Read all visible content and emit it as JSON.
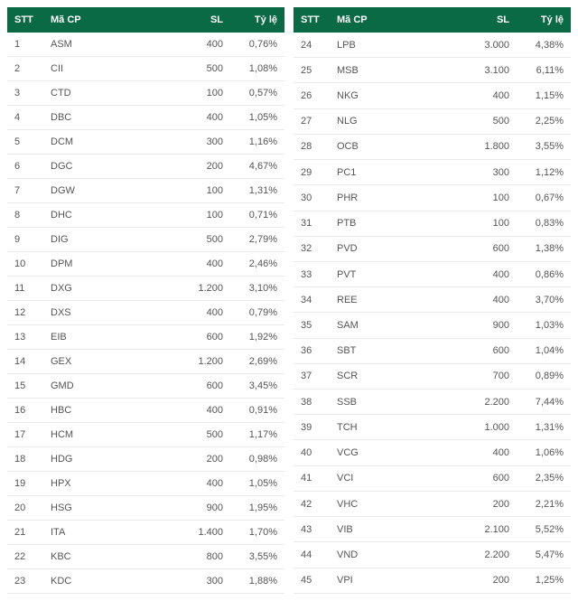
{
  "table": {
    "columns": {
      "stt": "STT",
      "code": "Mã CP",
      "sl": "SL",
      "ratio": "Tỷ lệ"
    },
    "header_bg": "#0b6a46",
    "header_color": "#ffffff",
    "row_border_color": "#eaeaea",
    "text_color": "#444444",
    "font_size_header": 11,
    "font_size_body": 11,
    "left": {
      "rows": [
        {
          "stt": "1",
          "code": "ASM",
          "sl": "400",
          "ratio": "0,76%"
        },
        {
          "stt": "2",
          "code": "CII",
          "sl": "500",
          "ratio": "1,08%"
        },
        {
          "stt": "3",
          "code": "CTD",
          "sl": "100",
          "ratio": "0,57%"
        },
        {
          "stt": "4",
          "code": "DBC",
          "sl": "400",
          "ratio": "1,05%"
        },
        {
          "stt": "5",
          "code": "DCM",
          "sl": "300",
          "ratio": "1,16%"
        },
        {
          "stt": "6",
          "code": "DGC",
          "sl": "200",
          "ratio": "4,67%"
        },
        {
          "stt": "7",
          "code": "DGW",
          "sl": "100",
          "ratio": "1,31%"
        },
        {
          "stt": "8",
          "code": "DHC",
          "sl": "100",
          "ratio": "0,71%"
        },
        {
          "stt": "9",
          "code": "DIG",
          "sl": "500",
          "ratio": "2,79%"
        },
        {
          "stt": "10",
          "code": "DPM",
          "sl": "400",
          "ratio": "2,46%"
        },
        {
          "stt": "11",
          "code": "DXG",
          "sl": "1.200",
          "ratio": "3,10%"
        },
        {
          "stt": "12",
          "code": "DXS",
          "sl": "400",
          "ratio": "0,79%"
        },
        {
          "stt": "13",
          "code": "EIB",
          "sl": "600",
          "ratio": "1,92%"
        },
        {
          "stt": "14",
          "code": "GEX",
          "sl": "1.200",
          "ratio": "2,69%"
        },
        {
          "stt": "15",
          "code": "GMD",
          "sl": "600",
          "ratio": "3,45%"
        },
        {
          "stt": "16",
          "code": "HBC",
          "sl": "400",
          "ratio": "0,91%"
        },
        {
          "stt": "17",
          "code": "HCM",
          "sl": "500",
          "ratio": "1,17%"
        },
        {
          "stt": "18",
          "code": "HDG",
          "sl": "200",
          "ratio": "0,98%"
        },
        {
          "stt": "19",
          "code": "HPX",
          "sl": "400",
          "ratio": "1,05%"
        },
        {
          "stt": "20",
          "code": "HSG",
          "sl": "900",
          "ratio": "1,95%"
        },
        {
          "stt": "21",
          "code": "ITA",
          "sl": "1.400",
          "ratio": "1,70%"
        },
        {
          "stt": "22",
          "code": "KBC",
          "sl": "800",
          "ratio": "3,55%"
        },
        {
          "stt": "23",
          "code": "KDC",
          "sl": "300",
          "ratio": "1,88%"
        }
      ]
    },
    "right": {
      "rows": [
        {
          "stt": "24",
          "code": "LPB",
          "sl": "3.000",
          "ratio": "4,38%"
        },
        {
          "stt": "25",
          "code": "MSB",
          "sl": "3.100",
          "ratio": "6,11%"
        },
        {
          "stt": "26",
          "code": "NKG",
          "sl": "400",
          "ratio": "1,15%"
        },
        {
          "stt": "27",
          "code": "NLG",
          "sl": "500",
          "ratio": "2,25%"
        },
        {
          "stt": "28",
          "code": "OCB",
          "sl": "1.800",
          "ratio": "3,55%"
        },
        {
          "stt": "29",
          "code": "PC1",
          "sl": "300",
          "ratio": "1,12%"
        },
        {
          "stt": "30",
          "code": "PHR",
          "sl": "100",
          "ratio": "0,67%"
        },
        {
          "stt": "31",
          "code": "PTB",
          "sl": "100",
          "ratio": "0,83%"
        },
        {
          "stt": "32",
          "code": "PVD",
          "sl": "600",
          "ratio": "1,38%"
        },
        {
          "stt": "33",
          "code": "PVT",
          "sl": "400",
          "ratio": "0,86%"
        },
        {
          "stt": "34",
          "code": "REE",
          "sl": "400",
          "ratio": "3,70%"
        },
        {
          "stt": "35",
          "code": "SAM",
          "sl": "900",
          "ratio": "1,03%"
        },
        {
          "stt": "36",
          "code": "SBT",
          "sl": "600",
          "ratio": "1,04%"
        },
        {
          "stt": "37",
          "code": "SCR",
          "sl": "700",
          "ratio": "0,89%"
        },
        {
          "stt": "38",
          "code": "SSB",
          "sl": "2.200",
          "ratio": "7,44%"
        },
        {
          "stt": "39",
          "code": "TCH",
          "sl": "1.000",
          "ratio": "1,31%"
        },
        {
          "stt": "40",
          "code": "VCG",
          "sl": "400",
          "ratio": "1,06%"
        },
        {
          "stt": "41",
          "code": "VCI",
          "sl": "600",
          "ratio": "2,35%"
        },
        {
          "stt": "42",
          "code": "VHC",
          "sl": "200",
          "ratio": "2,21%"
        },
        {
          "stt": "43",
          "code": "VIB",
          "sl": "2.100",
          "ratio": "5,52%"
        },
        {
          "stt": "44",
          "code": "VND",
          "sl": "2.200",
          "ratio": "5,47%"
        },
        {
          "stt": "45",
          "code": "VPI",
          "sl": "200",
          "ratio": "1,25%"
        }
      ]
    }
  }
}
